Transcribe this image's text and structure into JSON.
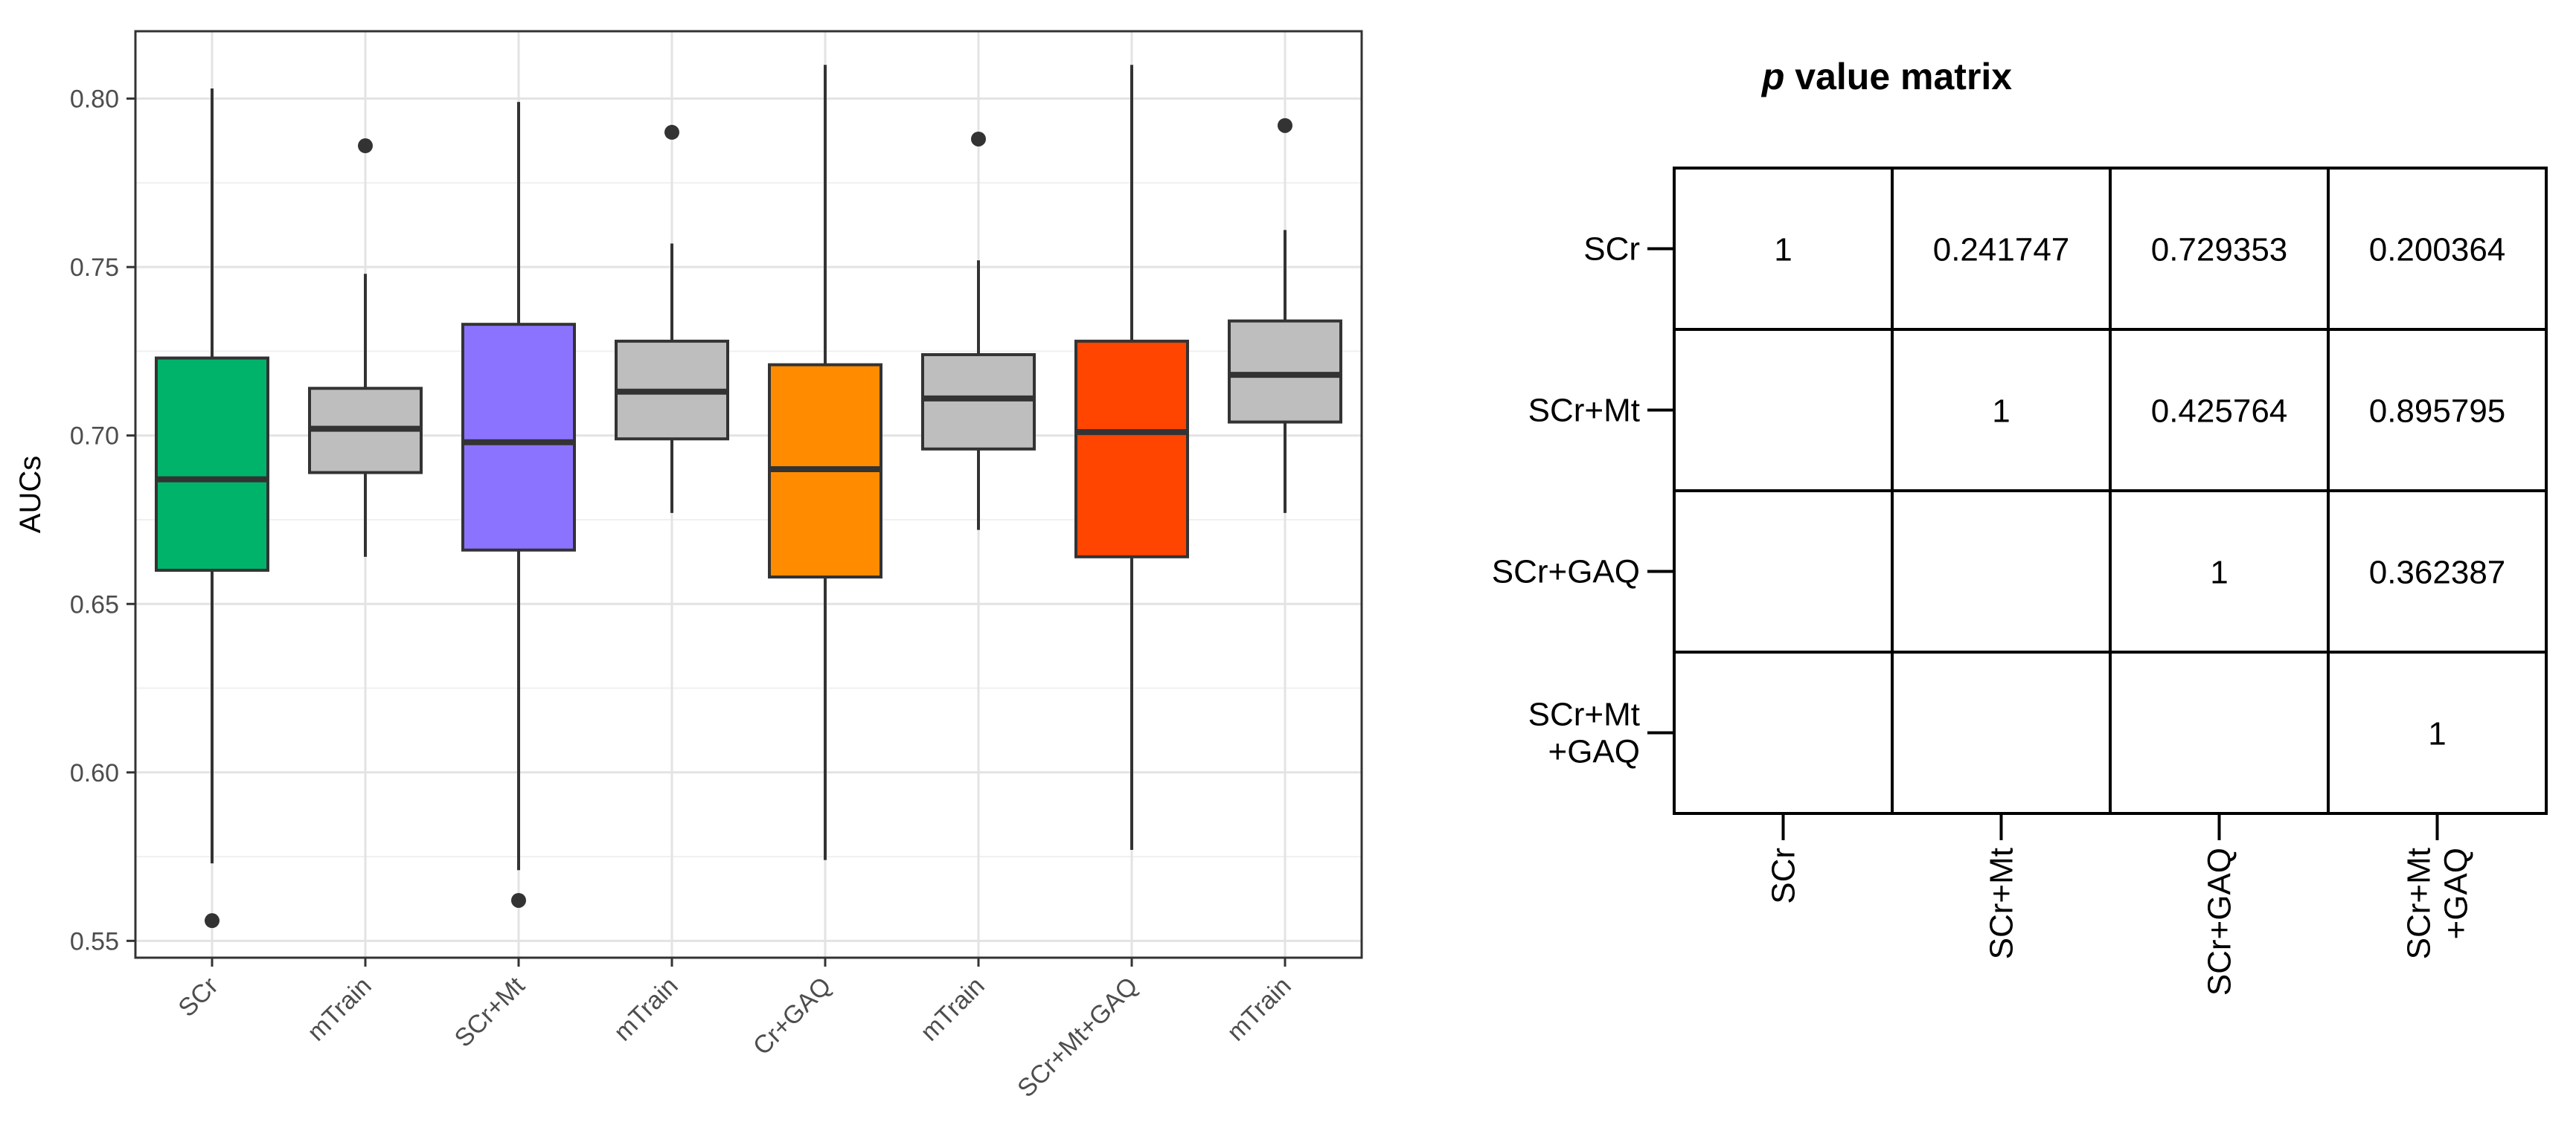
{
  "chart_data": [
    {
      "type": "boxplot",
      "ylabel": "AUCs",
      "ylim": [
        0.545,
        0.82
      ],
      "yticks": [
        0.55,
        0.6,
        0.65,
        0.7,
        0.75,
        0.8
      ],
      "grid": true,
      "categories": [
        "SCr",
        "mTrain",
        "SCr+Mt",
        "mTrain",
        "Cr+GAQ",
        "mTrain",
        "SCr+Mt+GAQ",
        "mTrain"
      ],
      "boxes": [
        {
          "label": "SCr",
          "color": "#00b36b",
          "whisker_low": 0.573,
          "q1": 0.66,
          "median": 0.687,
          "q3": 0.723,
          "whisker_high": 0.803,
          "outliers": [
            0.556
          ]
        },
        {
          "label": "mTrain",
          "color": "#bebebe",
          "whisker_low": 0.664,
          "q1": 0.689,
          "median": 0.702,
          "q3": 0.714,
          "whisker_high": 0.748,
          "outliers": [
            0.786
          ]
        },
        {
          "label": "SCr+Mt",
          "color": "#8c73ff",
          "whisker_low": 0.571,
          "q1": 0.666,
          "median": 0.698,
          "q3": 0.733,
          "whisker_high": 0.799,
          "outliers": [
            0.562
          ]
        },
        {
          "label": "mTrain",
          "color": "#bebebe",
          "whisker_low": 0.677,
          "q1": 0.699,
          "median": 0.713,
          "q3": 0.728,
          "whisker_high": 0.757,
          "outliers": [
            0.79
          ]
        },
        {
          "label": "Cr+GAQ",
          "color": "#ff8c00",
          "whisker_low": 0.574,
          "q1": 0.658,
          "median": 0.69,
          "q3": 0.721,
          "whisker_high": 0.81,
          "outliers": []
        },
        {
          "label": "mTrain",
          "color": "#bebebe",
          "whisker_low": 0.672,
          "q1": 0.696,
          "median": 0.711,
          "q3": 0.724,
          "whisker_high": 0.752,
          "outliers": [
            0.788
          ]
        },
        {
          "label": "SCr+Mt+GAQ",
          "color": "#ff4500",
          "whisker_low": 0.577,
          "q1": 0.664,
          "median": 0.701,
          "q3": 0.728,
          "whisker_high": 0.81,
          "outliers": []
        },
        {
          "label": "mTrain",
          "color": "#bebebe",
          "whisker_low": 0.677,
          "q1": 0.704,
          "median": 0.718,
          "q3": 0.734,
          "whisker_high": 0.761,
          "outliers": [
            0.792
          ]
        }
      ]
    },
    {
      "type": "table",
      "title_italic": "p",
      "title_rest": " value matrix",
      "row_labels": [
        [
          "SCr"
        ],
        [
          "SCr+Mt"
        ],
        [
          "SCr+GAQ"
        ],
        [
          "SCr+Mt",
          "+GAQ"
        ]
      ],
      "col_labels": [
        [
          "SCr"
        ],
        [
          "SCr+Mt"
        ],
        [
          "SCr+GAQ"
        ],
        [
          "SCr+Mt",
          "+GAQ"
        ]
      ],
      "cells": [
        [
          "1",
          "0.241747",
          "0.729353",
          "0.200364"
        ],
        [
          "",
          "1",
          "0.425764",
          "0.895795"
        ],
        [
          "",
          "",
          "1",
          "0.362387"
        ],
        [
          "",
          "",
          "",
          "1"
        ]
      ]
    }
  ]
}
